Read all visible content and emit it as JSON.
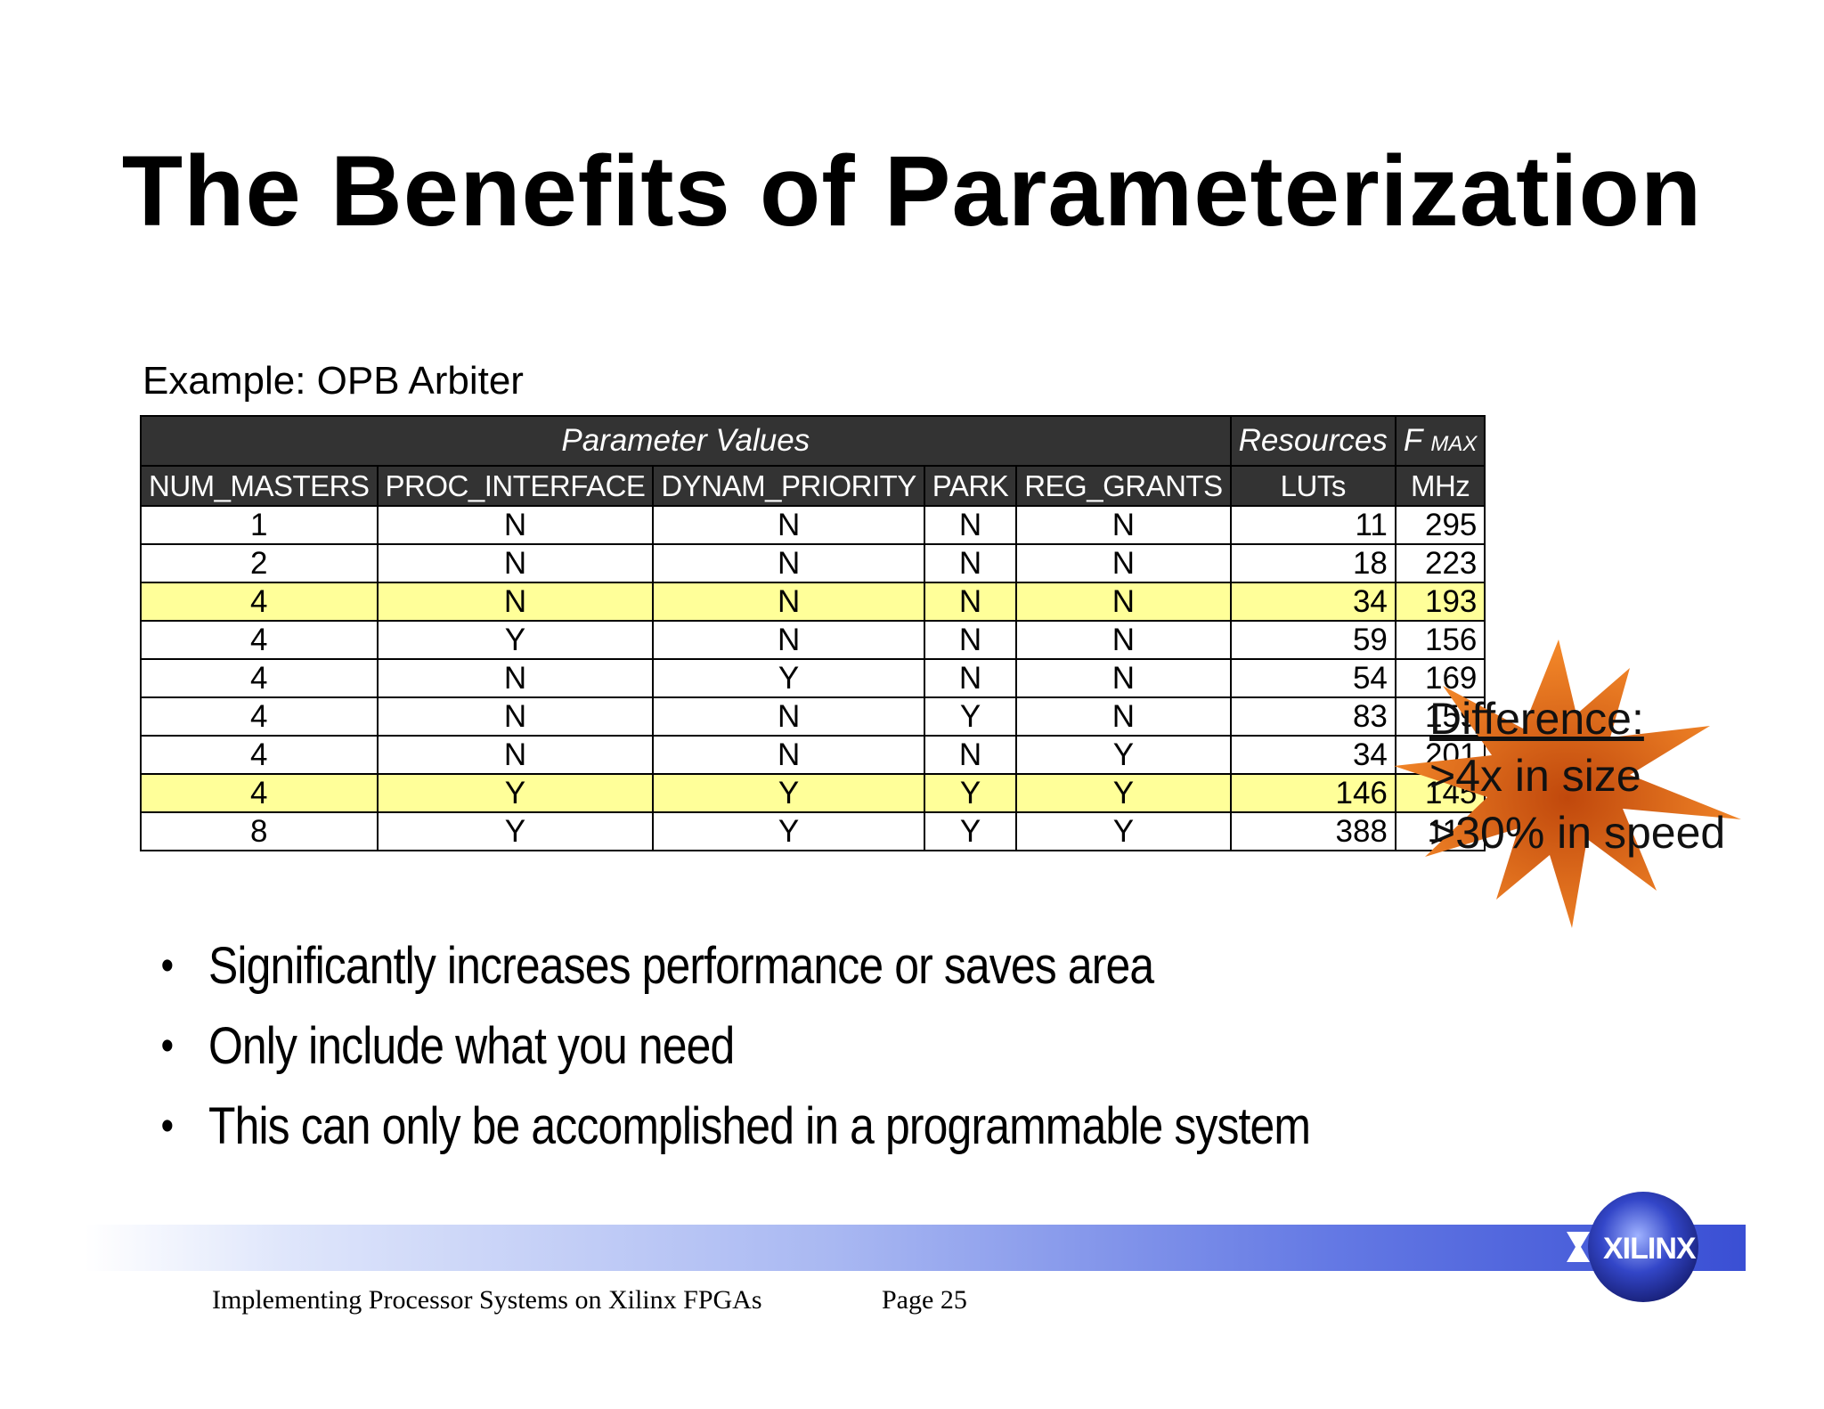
{
  "slide": {
    "title": "The Benefits of Parameterization",
    "subtitle": "Example: OPB Arbiter"
  },
  "table": {
    "groups": {
      "parameter_values": "Parameter Values",
      "resources": "Resources",
      "fmax_main": "F",
      "fmax_sub": "MAX"
    },
    "columns": [
      "NUM_MASTERS",
      "PROC_INTERFACE",
      "DYNAM_PRIORITY",
      "PARK",
      "REG_GRANTS",
      "LUTs",
      "MHz"
    ],
    "rows": [
      [
        "1",
        "N",
        "N",
        "N",
        "N",
        "11",
        "295"
      ],
      [
        "2",
        "N",
        "N",
        "N",
        "N",
        "18",
        "223"
      ],
      [
        "4",
        "N",
        "N",
        "N",
        "N",
        "34",
        "193"
      ],
      [
        "4",
        "Y",
        "N",
        "N",
        "N",
        "59",
        "156"
      ],
      [
        "4",
        "N",
        "Y",
        "N",
        "N",
        "54",
        "169"
      ],
      [
        "4",
        "N",
        "N",
        "Y",
        "N",
        "83",
        "159"
      ],
      [
        "4",
        "N",
        "N",
        "N",
        "Y",
        "34",
        "201"
      ],
      [
        "4",
        "Y",
        "Y",
        "Y",
        "Y",
        "146",
        "145"
      ],
      [
        "8",
        "Y",
        "Y",
        "Y",
        "Y",
        "388",
        "112"
      ]
    ],
    "highlight_color": "#ffff99"
  },
  "callout": {
    "heading": "Difference:",
    "line1": ">4x in size",
    "line2": ">30% in speed",
    "burst_color": "#f47a20"
  },
  "bullets": [
    "Significantly increases performance or saves area",
    "Only include what you need",
    "This can only be accomplished in a programmable system"
  ],
  "footer": {
    "left": "Implementing Processor Systems on Xilinx FPGAs",
    "page": "Page 25",
    "logo": "XILINX"
  }
}
